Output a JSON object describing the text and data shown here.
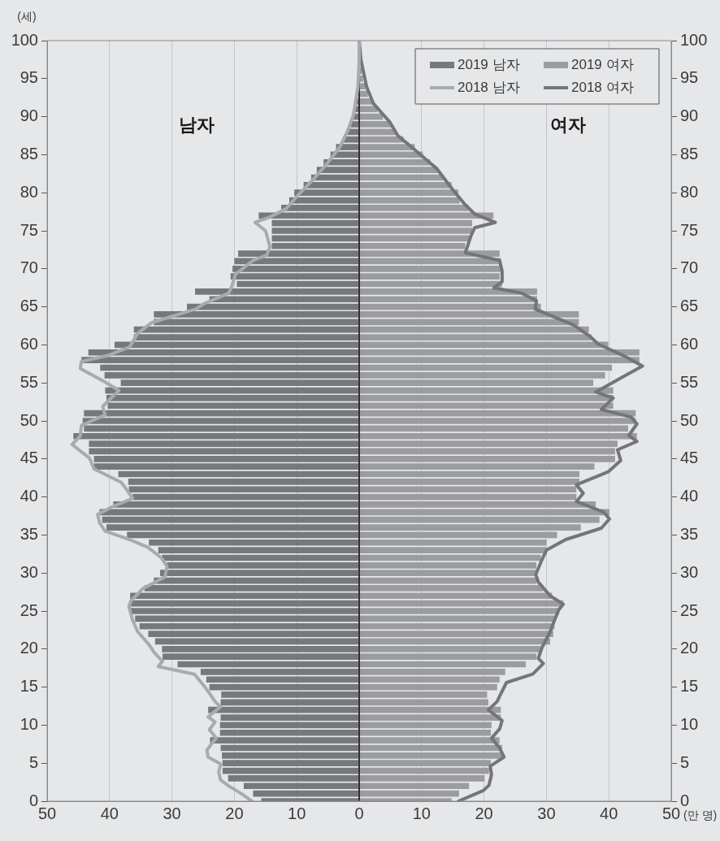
{
  "chart_data": {
    "type": "bar",
    "orientation": "horizontal",
    "ylabel": "(세)",
    "xlabel": "(만 명)",
    "annotations": [
      "남자",
      "여자"
    ],
    "x": [
      0,
      1,
      2,
      3,
      4,
      5,
      6,
      7,
      8,
      9,
      10,
      11,
      12,
      13,
      14,
      15,
      16,
      17,
      18,
      19,
      20,
      21,
      22,
      23,
      24,
      25,
      26,
      27,
      28,
      29,
      30,
      31,
      32,
      33,
      34,
      35,
      36,
      37,
      38,
      39,
      40,
      41,
      42,
      43,
      44,
      45,
      46,
      47,
      48,
      49,
      50,
      51,
      52,
      53,
      54,
      55,
      56,
      57,
      58,
      59,
      60,
      61,
      62,
      63,
      64,
      65,
      66,
      67,
      68,
      69,
      70,
      71,
      72,
      73,
      74,
      75,
      76,
      77,
      78,
      79,
      80,
      81,
      82,
      83,
      84,
      85,
      86,
      87,
      88,
      89,
      90,
      91,
      92,
      93,
      94,
      95,
      96,
      97,
      98,
      99,
      100
    ],
    "series": [
      {
        "name": "2019 남자",
        "color": "#77787c",
        "values": [
          -15.7,
          -17.0,
          -18.5,
          -21.0,
          -21.9,
          -21.9,
          -22.0,
          -22.2,
          -23.9,
          -22.3,
          -22.3,
          -22.2,
          -24.2,
          -22.2,
          -22.1,
          -24.0,
          -24.5,
          -25.4,
          -29.1,
          -31.5,
          -31.6,
          -32.7,
          -33.8,
          -35.2,
          -35.9,
          -36.6,
          -36.7,
          -36.7,
          -34.4,
          -32.9,
          -31.9,
          -30.8,
          -31.6,
          -32.2,
          -33.7,
          -37.2,
          -40.5,
          -41.2,
          -41.6,
          -39.4,
          -36.3,
          -36.9,
          -37.0,
          -38.6,
          -42.5,
          -42.5,
          -43.3,
          -43.3,
          -45.8,
          -44.1,
          -44.3,
          -44.1,
          -40.3,
          -40.5,
          -40.7,
          -38.2,
          -40.8,
          -41.5,
          -44.5,
          -43.4,
          -39.2,
          -36.1,
          -36.1,
          -32.9,
          -32.9,
          -27.6,
          -24.0,
          -26.3,
          -19.6,
          -20.6,
          -20.3,
          -20.0,
          -19.4,
          -14.0,
          -14.0,
          -14.0,
          -14.0,
          -16.1,
          -12.5,
          -11.2,
          -10.4,
          -8.9,
          -7.7,
          -6.8,
          -5.7,
          -4.6,
          -3.7,
          -2.6,
          -2.0,
          -1.3,
          -0.9,
          -0.7,
          -0.4,
          null,
          null,
          null,
          -0.1,
          -0.1,
          -0.1,
          -0.1,
          -0.1
        ]
      },
      {
        "name": "2019 여자",
        "color": "#9b9c9f",
        "values": [
          14.8,
          16.0,
          17.6,
          20.1,
          20.8,
          21.1,
          22.9,
          22.9,
          22.5,
          21.1,
          21.2,
          22.7,
          22.7,
          20.7,
          20.5,
          22.1,
          22.5,
          23.4,
          26.7,
          28.4,
          29.3,
          30.6,
          31.1,
          31.3,
          31.5,
          32.0,
          32.7,
          30.9,
          29.5,
          28.4,
          28.4,
          28.4,
          29.1,
          30.0,
          30.0,
          31.7,
          35.5,
          38.5,
          40.1,
          37.9,
          34.8,
          34.8,
          35.3,
          35.3,
          37.7,
          41.0,
          41.0,
          41.4,
          44.5,
          43.1,
          44.3,
          44.3,
          40.7,
          40.7,
          40.7,
          37.5,
          39.4,
          40.5,
          44.9,
          44.9,
          39.9,
          37.2,
          36.8,
          35.2,
          35.2,
          29.1,
          28.5,
          28.5,
          22.9,
          22.5,
          22.7,
          22.7,
          22.5,
          17.0,
          17.7,
          18.1,
          18.1,
          21.5,
          17.5,
          16.1,
          15.9,
          14.8,
          13.5,
          12.6,
          11.4,
          10.2,
          8.9,
          7.1,
          5.8,
          5.1,
          3.8,
          2.9,
          2.1,
          1.4,
          1.0,
          0.6,
          0.4,
          null,
          null,
          0.1,
          null
        ]
      },
      {
        "name": "2018 남자",
        "type": "line",
        "color": "#a9aaad",
        "x": [
          0,
          1,
          2,
          2.8,
          3.8,
          4.9,
          5.8,
          6.7,
          7.6,
          8.3,
          9.4,
          10.4,
          11.1,
          12.4,
          13.1,
          14.2,
          15.2,
          16.7,
          17.7,
          18.4,
          19.5,
          20.6,
          22.3,
          23.8,
          25.6,
          26.3,
          28,
          29.5,
          30.9,
          32,
          33.4,
          34.4,
          35.5,
          36.6,
          37.7,
          38.7,
          39.8,
          40.9,
          41.9,
          43.7,
          45.1,
          46.9,
          48,
          49.4,
          50.8,
          51.9,
          54,
          55.1,
          56.9,
          57.8,
          58.6,
          59.7,
          61.5,
          62.9,
          64.7,
          65.4,
          66.8,
          67.5,
          69.3,
          71.1,
          71.8,
          72.9,
          75,
          76.1,
          76.8,
          77.9,
          79.6,
          81.8,
          83.9,
          86,
          88.2,
          90.3,
          93.9,
          97.4,
          100
        ],
        "values": [
          -17.2,
          -18.9,
          -20.9,
          -22.2,
          -22.5,
          -22.2,
          -24.2,
          -24.4,
          -23.6,
          -22.9,
          -24.0,
          -23.1,
          -24.2,
          -22.2,
          -23.1,
          -24.0,
          -24.9,
          -26.4,
          -32.2,
          -31.5,
          -32.8,
          -33.7,
          -35.5,
          -36.3,
          -36.9,
          -36.6,
          -34.6,
          -31.1,
          -30.8,
          -31.7,
          -33.9,
          -36.8,
          -40.7,
          -41.6,
          -41.9,
          -39.6,
          -36.3,
          -37.2,
          -38.1,
          -42.5,
          -43.2,
          -46.0,
          -44.7,
          -44.5,
          -40.7,
          -41.1,
          -38.5,
          -40.7,
          -44.7,
          -44.5,
          -40.3,
          -36.8,
          -35.5,
          -33.3,
          -26.2,
          -24.9,
          -20.9,
          -20.5,
          -19.8,
          -17.0,
          -14.8,
          -14.3,
          -15.0,
          -16.7,
          -14.3,
          -11.7,
          -9.9,
          -7.3,
          -5.1,
          -3.1,
          -1.8,
          -0.9,
          -0.2,
          0,
          0
        ]
      },
      {
        "name": "2018 여자",
        "type": "line",
        "color": "#747579",
        "x": [
          0,
          1.4,
          2.1,
          3.5,
          4.6,
          5.8,
          7.0,
          8.3,
          9.5,
          10.6,
          12.0,
          13.1,
          13.8,
          15.6,
          16.7,
          18.1,
          18.8,
          20.2,
          22.3,
          23.8,
          25.2,
          25.9,
          27,
          28.8,
          29.8,
          31.6,
          33,
          34.4,
          35.9,
          37.1,
          38,
          39.4,
          40.5,
          41.6,
          43.3,
          44.8,
          46.2,
          47.3,
          48.1,
          49.6,
          50.5,
          51.5,
          53,
          53.8,
          55.4,
          57.2,
          58.6,
          60.1,
          61.1,
          62.6,
          64.7,
          65.8,
          66.8,
          67.5,
          68.3,
          69.7,
          71.1,
          72.1,
          74.3,
          75.4,
          76.1,
          77.2,
          78.6,
          80.4,
          83.2,
          86,
          87.5,
          89.3,
          91.7,
          93.9,
          97.4,
          100
        ],
        "values": [
          15.9,
          19.9,
          20.8,
          21.2,
          21.0,
          23.2,
          22.5,
          21.2,
          22.5,
          22.9,
          20.7,
          22.1,
          22.5,
          23.6,
          27.8,
          29.5,
          28.7,
          29.3,
          30.6,
          31.3,
          32.0,
          32.7,
          30.6,
          28.7,
          28.3,
          29.2,
          30.0,
          33.1,
          38.8,
          40.1,
          39.2,
          34.8,
          35.9,
          34.8,
          39.9,
          41.9,
          41.4,
          44.5,
          43.2,
          44.5,
          43.6,
          38.8,
          40.7,
          37.9,
          41.4,
          45.4,
          42.3,
          38.3,
          37.0,
          34.4,
          28.2,
          28.4,
          26.0,
          21.6,
          22.9,
          22.9,
          22.5,
          17.0,
          17.9,
          18.5,
          21.8,
          18.5,
          16.8,
          15.0,
          12.4,
          8.4,
          6.2,
          4.9,
          2.3,
          1.2,
          0.3,
          0
        ]
      }
    ],
    "xlim": [
      -50,
      50
    ],
    "xticks": [
      {
        "value": -50,
        "label": "50"
      },
      {
        "value": -40,
        "label": "40"
      },
      {
        "value": -30,
        "label": "30"
      },
      {
        "value": -20,
        "label": "20"
      },
      {
        "value": -10,
        "label": "10"
      },
      0,
      10,
      20,
      30,
      40,
      50
    ],
    "ylim": [
      0,
      100
    ],
    "yticks": [
      0,
      5,
      10,
      15,
      20,
      25,
      30,
      35,
      40,
      45,
      50,
      55,
      60,
      65,
      70,
      75,
      80,
      85,
      90,
      95,
      100
    ],
    "y2lim": [
      0,
      100
    ],
    "y2ticks": [
      0,
      5,
      10,
      15,
      20,
      25,
      30,
      35,
      40,
      45,
      50,
      55,
      60,
      65,
      70,
      75,
      80,
      85,
      90,
      95,
      100
    ],
    "stacked": true,
    "grid": "x",
    "legend": "top right",
    "marker": "none",
    "line_style": "solid"
  }
}
